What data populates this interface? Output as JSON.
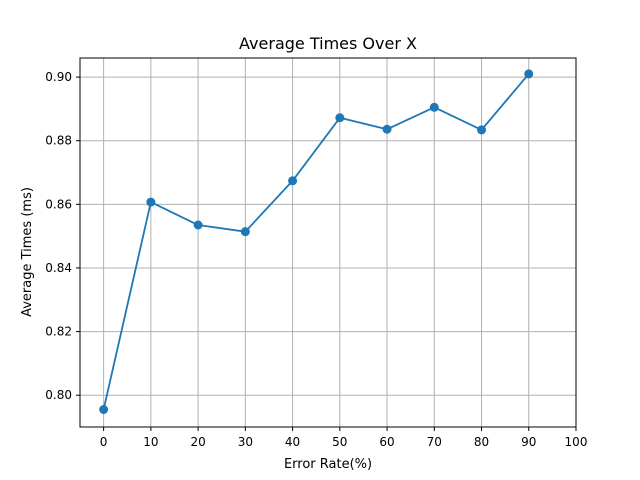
{
  "chart_data": {
    "type": "line",
    "title": "Average Times Over X",
    "xlabel": "Error Rate(%)",
    "ylabel": "Average Times (ms)",
    "x": [
      0,
      10,
      20,
      30,
      40,
      50,
      60,
      70,
      80,
      90
    ],
    "series": [
      {
        "values": [
          0.7955,
          0.8607,
          0.8535,
          0.8514,
          0.8674,
          0.8872,
          0.8836,
          0.8905,
          0.8834,
          0.901
        ],
        "color": "#1f77b4",
        "marker": "circle"
      }
    ],
    "xlim": [
      -5,
      100
    ],
    "ylim": [
      0.79,
      0.906
    ],
    "xticks": [
      0,
      10,
      20,
      30,
      40,
      50,
      60,
      70,
      80,
      90,
      100
    ],
    "yticks": [
      0.8,
      0.82,
      0.84,
      0.86,
      0.88,
      0.9
    ],
    "ytick_labels": [
      "0.80",
      "0.82",
      "0.84",
      "0.86",
      "0.88",
      "0.90"
    ],
    "grid": true,
    "grid_color": "#b0b0b0"
  }
}
